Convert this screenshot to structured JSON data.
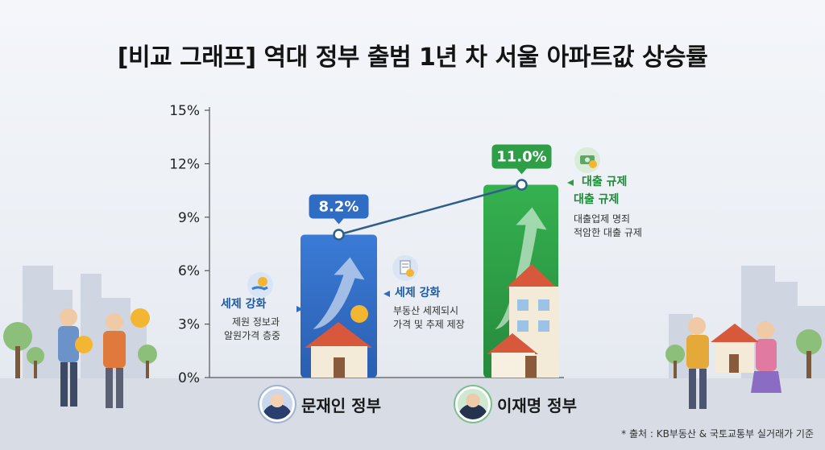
{
  "title": "[비교 그래프] 역대 정부 출범 1년 차 서울 아파트값 상승률",
  "source": "* 출처 : KB부동산 & 국토교통부 실거래가 기준",
  "colors": {
    "bar_blue": "#2f6cc4",
    "bar_green": "#2e9e47",
    "line": "#2e5f8a",
    "label_blue": "#2f6cc4",
    "label_green": "#2e9e47"
  },
  "annotations": {
    "left_head": "세제 강화",
    "left_line1": "제원 정보과",
    "left_line2": "알원가격 층중",
    "mid_head": "세제 강화",
    "mid_line1": "부동산 세제되시",
    "mid_line2": "가격 및 추제 제장",
    "right_head1": "대출 규제",
    "right_head2": "대출 규제",
    "right_line1": "대출업제 명죄",
    "right_line2": "적암한 대출 규제"
  },
  "governments": [
    {
      "name": "문재인 정부"
    },
    {
      "name": "이재명 정부"
    }
  ],
  "chart_data": {
    "type": "bar",
    "title": "[비교 그래프] 역대 정부 출범 1년 차 서울 아파트값 상승률",
    "categories": [
      "문재인 정부",
      "이재명 정부"
    ],
    "values": [
      8.2,
      11.0
    ],
    "value_labels": [
      "8.2%",
      "11.0%"
    ],
    "ylim": [
      0,
      15
    ],
    "yticks": [
      "0%",
      "3%",
      "6%",
      "9%",
      "12%",
      "15%"
    ],
    "ytick_values": [
      0,
      3,
      6,
      9,
      12,
      15
    ],
    "connector_line": true,
    "grid": false,
    "xlabel": "",
    "ylabel": ""
  }
}
